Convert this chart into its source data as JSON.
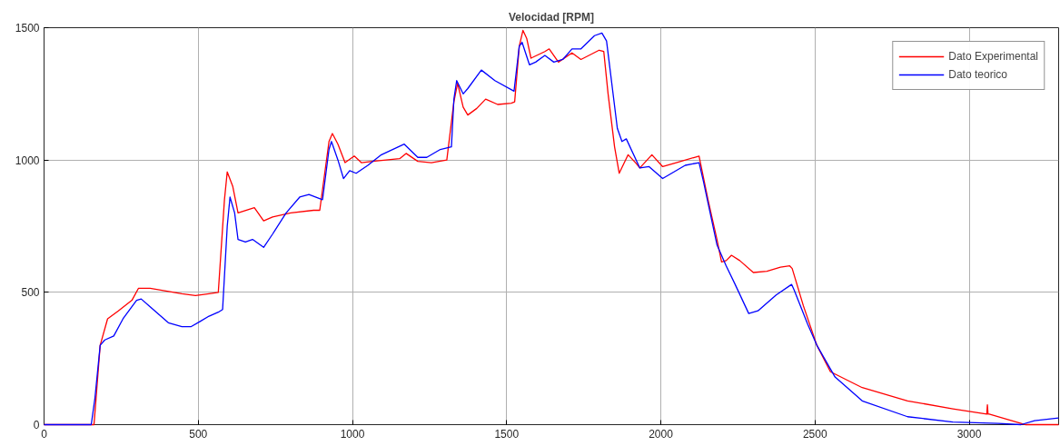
{
  "chart_data": {
    "type": "line",
    "title": "Velocidad [RPM]",
    "xlim": [
      0,
      3290
    ],
    "ylim": [
      0,
      1500
    ],
    "xticks": [
      0,
      500,
      1000,
      1500,
      2000,
      2500,
      3000
    ],
    "yticks": [
      0,
      500,
      1000,
      1500
    ],
    "grid": true,
    "legend": "top right",
    "line_style": "solid",
    "marker": "none",
    "series": [
      {
        "name": "Dato Experimental",
        "color": "#ff0000",
        "x": [
          0,
          153,
          162,
          182,
          206,
          241,
          285,
          306,
          344,
          447,
          491,
          535,
          565,
          585,
          594,
          612,
          629,
          668,
          682,
          712,
          741,
          800,
          874,
          894,
          924,
          935,
          953,
          976,
          1006,
          1029,
          1065,
          1153,
          1174,
          1212,
          1256,
          1306,
          1329,
          1341,
          1359,
          1374,
          1403,
          1432,
          1471,
          1515,
          1526,
          1541,
          1553,
          1565,
          1579,
          1624,
          1638,
          1668,
          1712,
          1741,
          1800,
          1815,
          1829,
          1850,
          1865,
          1894,
          1918,
          1932,
          1971,
          2006,
          2050,
          2109,
          2124,
          2153,
          2182,
          2197,
          2212,
          2229,
          2256,
          2300,
          2344,
          2388,
          2418,
          2426,
          2462,
          2506,
          2550,
          2653,
          2800,
          2947,
          3057,
          3059,
          3061,
          3065,
          3168,
          3182,
          3290
        ],
        "values": [
          0,
          0,
          0,
          300,
          400,
          430,
          470,
          515,
          515,
          495,
          488,
          495,
          500,
          850,
          955,
          900,
          800,
          815,
          820,
          770,
          785,
          800,
          810,
          810,
          1070,
          1100,
          1060,
          990,
          1015,
          990,
          995,
          1005,
          1025,
          995,
          990,
          1000,
          1220,
          1290,
          1200,
          1170,
          1195,
          1230,
          1210,
          1215,
          1220,
          1430,
          1490,
          1460,
          1385,
          1410,
          1420,
          1370,
          1405,
          1380,
          1415,
          1410,
          1250,
          1050,
          950,
          1020,
          990,
          970,
          1020,
          975,
          990,
          1010,
          1015,
          850,
          700,
          615,
          620,
          640,
          620,
          575,
          580,
          595,
          600,
          590,
          450,
          300,
          200,
          140,
          90,
          60,
          40,
          75,
          40,
          40,
          5,
          0,
          0
        ]
      },
      {
        "name": "Dato teorico",
        "color": "#0000ff",
        "x": [
          0,
          153,
          165,
          182,
          197,
          226,
          256,
          300,
          315,
          344,
          403,
          447,
          476,
          506,
          535,
          565,
          579,
          594,
          603,
          618,
          629,
          653,
          676,
          712,
          741,
          785,
          829,
          859,
          903,
          924,
          932,
          953,
          971,
          991,
          1012,
          1050,
          1094,
          1168,
          1212,
          1241,
          1285,
          1321,
          1329,
          1338,
          1359,
          1374,
          1418,
          1462,
          1524,
          1541,
          1550,
          1574,
          1594,
          1624,
          1653,
          1682,
          1712,
          1741,
          1785,
          1809,
          1824,
          1859,
          1874,
          1888,
          1932,
          1962,
          2006,
          2035,
          2079,
          2124,
          2138,
          2182,
          2212,
          2241,
          2285,
          2315,
          2374,
          2424,
          2432,
          2476,
          2506,
          2565,
          2653,
          2800,
          2947,
          3094,
          3168,
          3212,
          3290
        ],
        "values": [
          0,
          0,
          100,
          300,
          320,
          335,
          400,
          470,
          475,
          445,
          385,
          370,
          370,
          390,
          410,
          425,
          435,
          750,
          860,
          800,
          700,
          690,
          700,
          670,
          720,
          800,
          860,
          870,
          850,
          1040,
          1070,
          1000,
          930,
          960,
          950,
          980,
          1020,
          1060,
          1010,
          1010,
          1040,
          1050,
          1230,
          1300,
          1250,
          1270,
          1340,
          1300,
          1260,
          1430,
          1445,
          1360,
          1370,
          1395,
          1370,
          1380,
          1420,
          1420,
          1470,
          1480,
          1450,
          1120,
          1070,
          1080,
          970,
          975,
          930,
          950,
          980,
          990,
          920,
          680,
          600,
          530,
          420,
          430,
          490,
          530,
          510,
          380,
          300,
          180,
          90,
          30,
          10,
          5,
          0,
          15,
          25
        ]
      }
    ]
  }
}
